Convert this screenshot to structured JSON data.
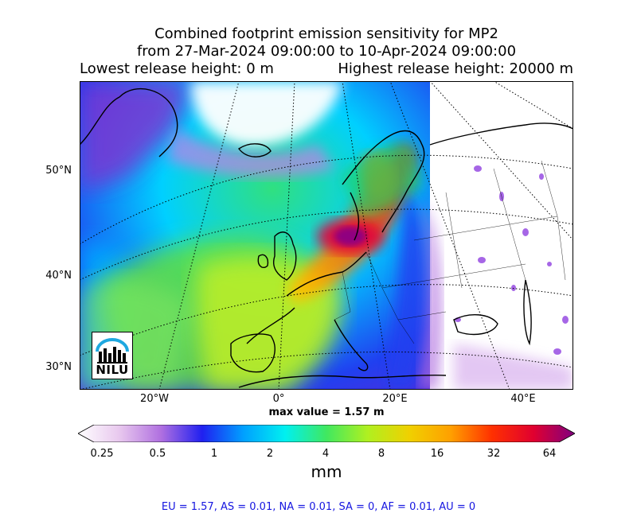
{
  "title": {
    "line1": "Combined footprint emission sensitivity for MP2",
    "line2": "from 27-Mar-2024 09:00:00 to 10-Apr-2024 09:00:00",
    "lowest_release": "Lowest release height: 0 m",
    "highest_release": "Highest release height: 20000 m"
  },
  "axes": {
    "lat_labels": [
      "50°N",
      "40°N",
      "30°N"
    ],
    "lon_labels": [
      "20°W",
      "0°",
      "20°E",
      "40°E"
    ]
  },
  "max_value": "max value = 1.57 m",
  "colorbar": {
    "ticks": [
      "0.25",
      "0.5",
      "1",
      "2",
      "4",
      "8",
      "16",
      "32",
      "64"
    ],
    "units": "mm",
    "colors": [
      "#ffffff",
      "#e8c8ee",
      "#b070e0",
      "#2020f0",
      "#00a0ff",
      "#00f0f0",
      "#40e860",
      "#b0f020",
      "#f0d000",
      "#ffa000",
      "#ff3000",
      "#e00030",
      "#800080"
    ]
  },
  "footer": "EU = 1.57,  AS = 0.01,  NA = 0.01,  SA = 0,  AF = 0.01,  AU = 0",
  "logo": {
    "text": "NILU"
  }
}
